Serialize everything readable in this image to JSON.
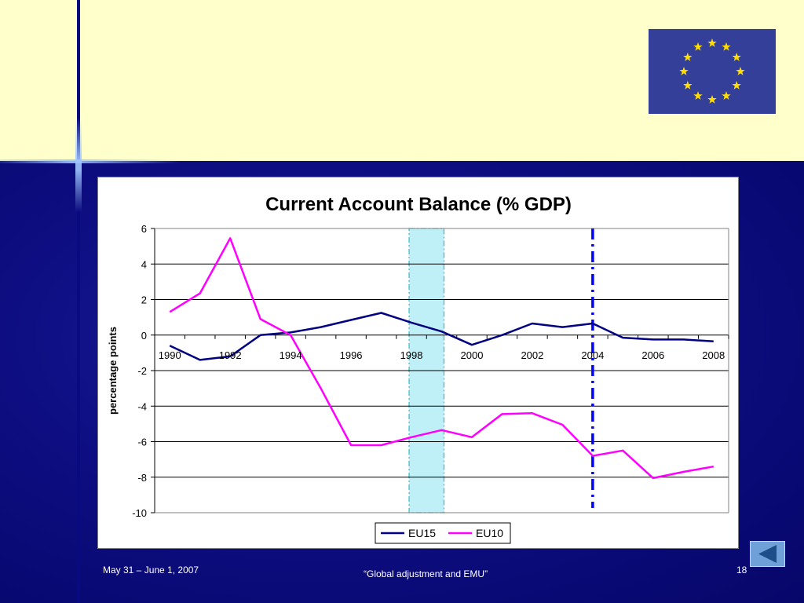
{
  "slide": {
    "footer_date": "May 31 – June 1, 2007",
    "footer_title": "“Global adjustment and EMU”",
    "page_number": "18",
    "nav_back_icon": "left-triangle-icon",
    "flag_icon": "eu-flag-icon",
    "colors": {
      "top_band": "#ffffcc",
      "background": "#0c0c7e",
      "flag": "#343f99",
      "star": "#ffde00"
    }
  },
  "chart_data": {
    "type": "line",
    "title": "Current Account Balance (% GDP)",
    "xlabel": "",
    "ylabel": "percentage points",
    "x": [
      1990,
      1991,
      1992,
      1993,
      1994,
      1995,
      1996,
      1997,
      1998,
      1999,
      2000,
      2001,
      2002,
      2003,
      2004,
      2005,
      2006,
      2007,
      2008
    ],
    "x_tick_labels": [
      "1990",
      "1992",
      "1994",
      "1996",
      "1998",
      "2000",
      "2002",
      "2004",
      "2006",
      "2008"
    ],
    "y_tick_labels": [
      "6",
      "4",
      "2",
      "0",
      "-2",
      "-4",
      "-6",
      "-8",
      "-10"
    ],
    "ylim": [
      -10,
      6
    ],
    "grid": "horizontal",
    "legend_position": "bottom",
    "series": [
      {
        "name": "EU15",
        "color": "#000080",
        "values": [
          -0.6,
          -1.4,
          -1.2,
          0.0,
          0.15,
          0.45,
          0.85,
          1.25,
          0.7,
          0.2,
          -0.55,
          0.0,
          0.65,
          0.45,
          0.65,
          -0.15,
          -0.25,
          -0.25,
          -0.35
        ]
      },
      {
        "name": "EU10",
        "color": "#ff00ff",
        "values": [
          1.3,
          2.35,
          5.45,
          0.9,
          0.0,
          -3.0,
          -6.2,
          -6.2,
          -5.75,
          -5.35,
          -5.75,
          -4.45,
          -4.4,
          -5.05,
          -6.8,
          -6.5,
          -8.05,
          -7.7,
          -7.4
        ]
      }
    ],
    "annotations": [
      {
        "type": "shaded-band",
        "x_range": [
          1998,
          1999
        ],
        "color": "#bff0f7"
      },
      {
        "type": "dash-dot-vertical-line",
        "x": 2004,
        "color": "#0000ff"
      }
    ]
  }
}
